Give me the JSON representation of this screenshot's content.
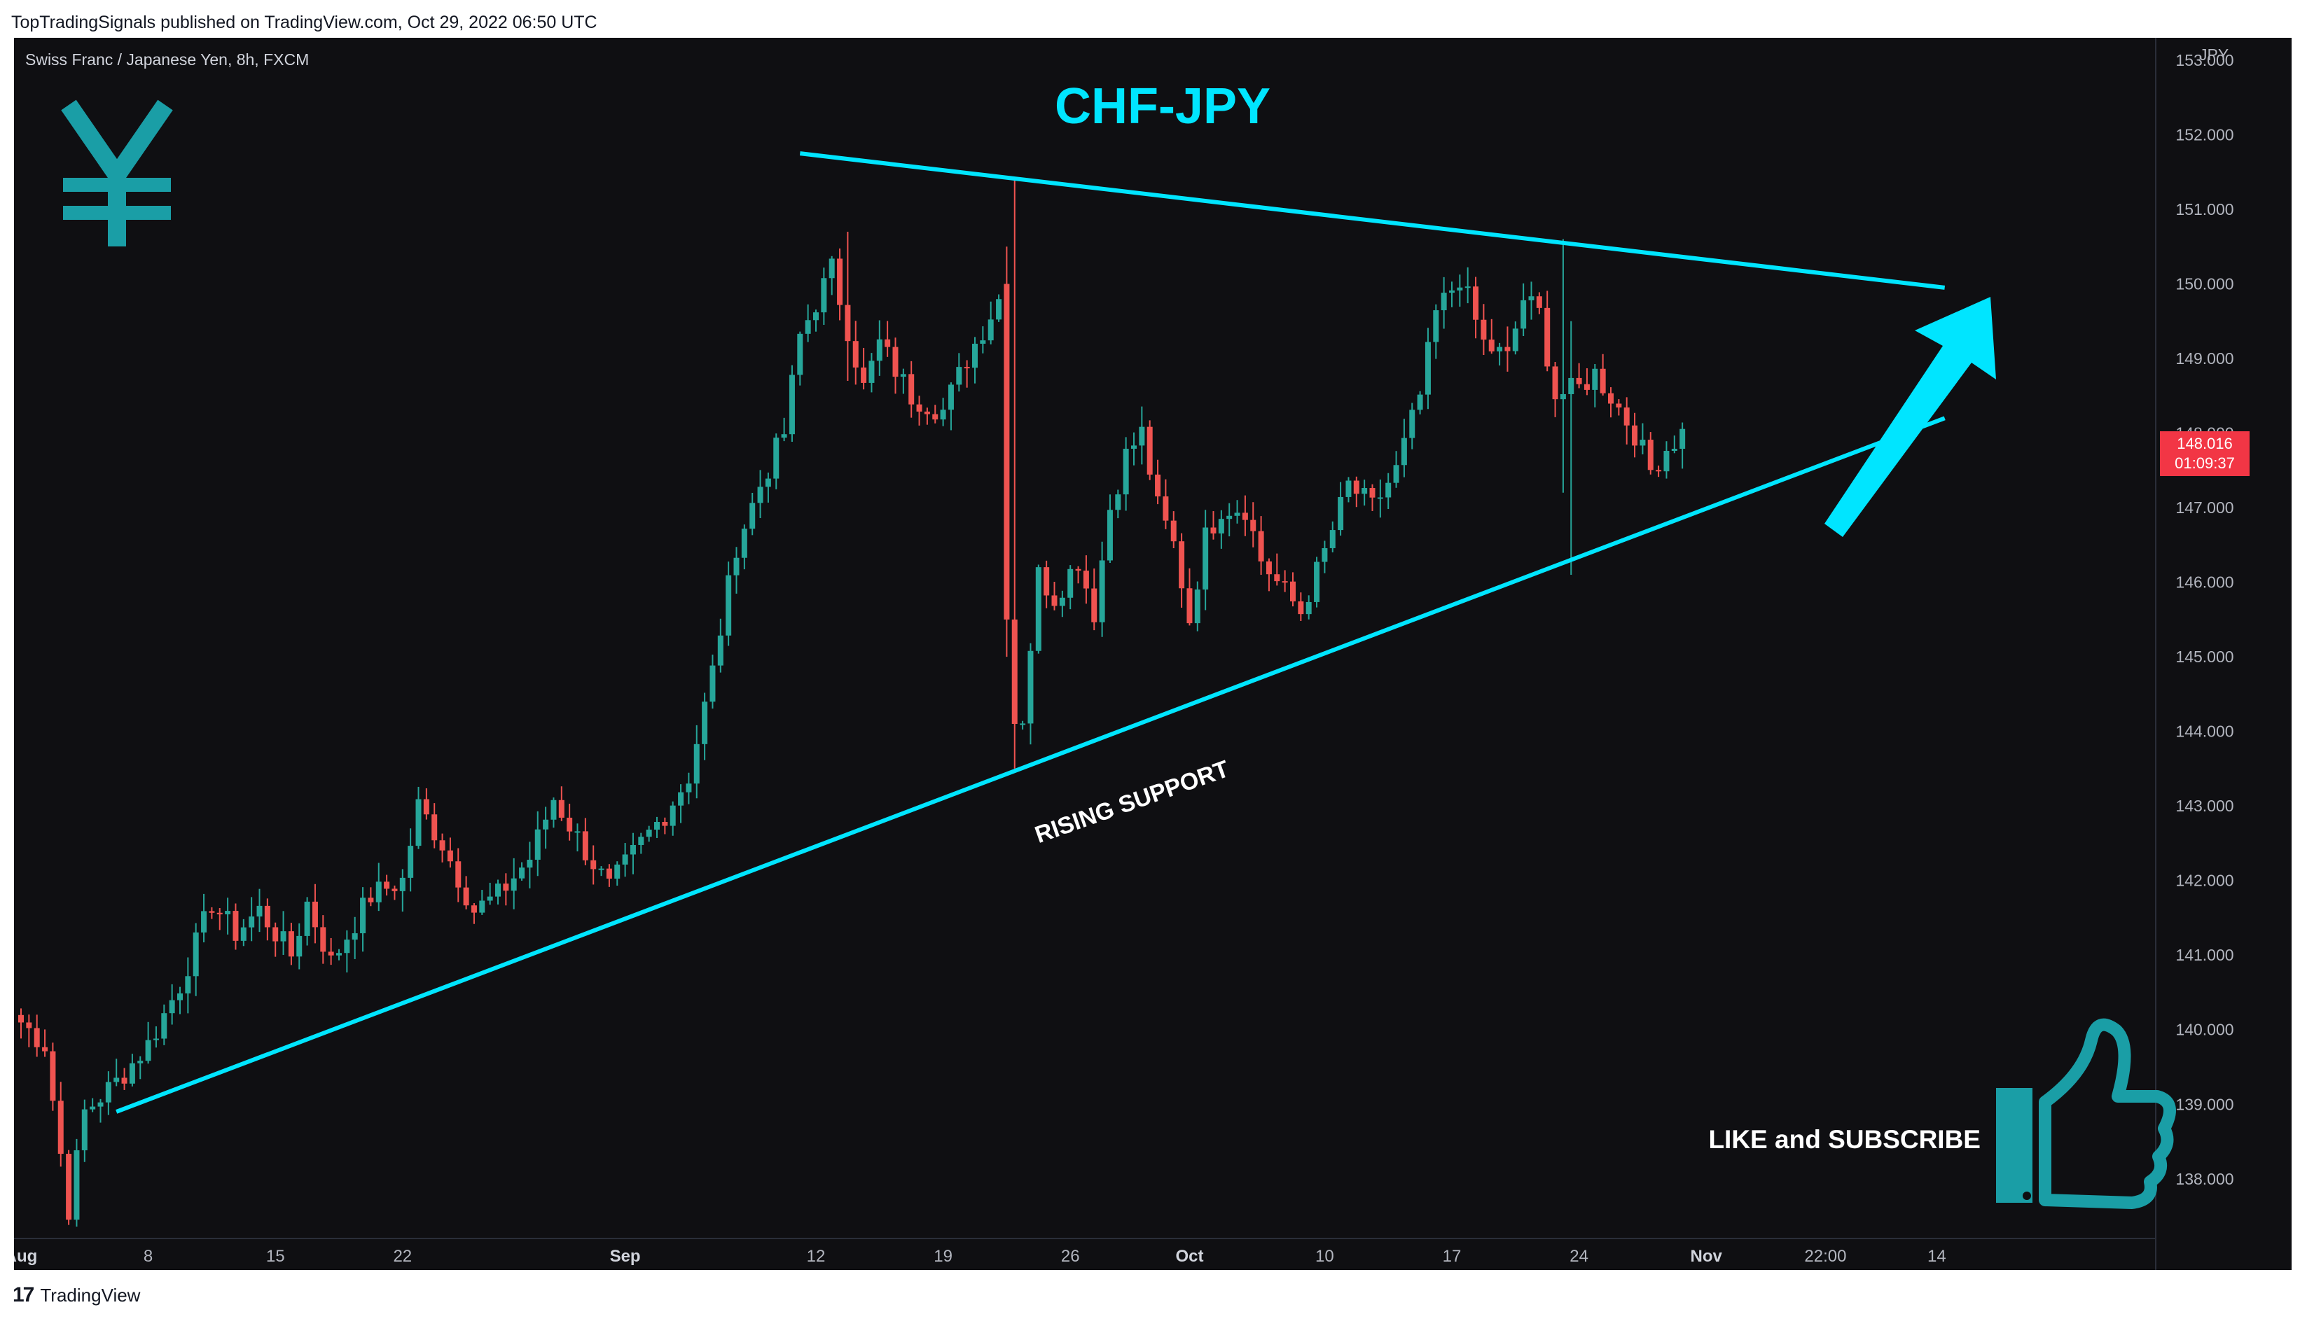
{
  "header": {
    "publish_line": "TopTradingSignals published on TradingView.com, Oct 29, 2022 06:50 UTC"
  },
  "symbol_line": "Swiss Franc / Japanese Yen, 8h, FXCM",
  "footer": {
    "brand": "TradingView",
    "logo_glyph": "17"
  },
  "colors": {
    "background": "#0f0f12",
    "up": "#26a69a",
    "down": "#ef5350",
    "cyan": "#00e5ff",
    "teal_icon": "#1a9ea6",
    "axis_text": "#b2b5be",
    "price_tag": "#f23645"
  },
  "annotations": {
    "title": "CHF-JPY",
    "support_label": "RISING SUPPORT",
    "cta": "LIKE and SUBSCRIBE",
    "yen_icon": "yen-icon",
    "thumb_icon": "thumbs-up-icon",
    "arrow_icon": "arrow-up-right-icon"
  },
  "chart_data": {
    "type": "candlestick",
    "unit": "JPY",
    "ylim": [
      137.2,
      153.3
    ],
    "y_ticks": [
      153,
      152,
      151,
      150,
      149,
      148,
      147,
      146,
      145,
      144,
      143,
      142,
      141,
      140,
      139,
      138
    ],
    "y_tick_labels": [
      "153.000",
      "152.000",
      "151.000",
      "150.000",
      "149.000",
      "148.000",
      "147.000",
      "146.000",
      "145.000",
      "144.000",
      "143.000",
      "142.000",
      "141.000",
      "140.000",
      "139.000",
      "138.000"
    ],
    "x_labels": [
      "Aug",
      "8",
      "15",
      "22",
      "Sep",
      "12",
      "19",
      "26",
      "Oct",
      "10",
      "17",
      "24",
      "Nov",
      "22:00",
      "14"
    ],
    "x_label_index": [
      0,
      16,
      32,
      48,
      76,
      100,
      116,
      132,
      147,
      164,
      180,
      196,
      212,
      227,
      241
    ],
    "bold_x_labels": [
      "Aug",
      "Sep",
      "Oct",
      "Nov"
    ],
    "last_price": "148.016",
    "countdown": "01:09:37",
    "candle_count": 210,
    "path": [
      [
        0,
        140.1
      ],
      [
        3,
        139.8
      ],
      [
        6,
        137.6
      ],
      [
        8,
        138.9
      ],
      [
        12,
        139.3
      ],
      [
        16,
        139.8
      ],
      [
        20,
        140.6
      ],
      [
        24,
        141.7
      ],
      [
        27,
        141.3
      ],
      [
        30,
        141.6
      ],
      [
        34,
        141.0
      ],
      [
        36,
        141.7
      ],
      [
        39,
        140.9
      ],
      [
        44,
        141.8
      ],
      [
        48,
        142.0
      ],
      [
        50,
        143.0
      ],
      [
        53,
        142.5
      ],
      [
        57,
        141.6
      ],
      [
        60,
        141.8
      ],
      [
        64,
        142.3
      ],
      [
        67,
        143.1
      ],
      [
        71,
        142.4
      ],
      [
        74,
        141.9
      ],
      [
        78,
        142.5
      ],
      [
        81,
        142.9
      ],
      [
        84,
        143.4
      ],
      [
        87,
        144.8
      ],
      [
        90,
        146.5
      ],
      [
        93,
        147.3
      ],
      [
        96,
        148.0
      ],
      [
        98,
        149.3
      ],
      [
        102,
        150.2
      ],
      [
        104,
        149.4
      ],
      [
        106,
        148.6
      ],
      [
        108,
        149.2
      ],
      [
        112,
        148.5
      ],
      [
        116,
        148.3
      ],
      [
        119,
        149.0
      ],
      [
        123,
        149.8
      ],
      [
        124,
        145.4
      ],
      [
        126,
        144.2
      ],
      [
        128,
        146.1
      ],
      [
        130,
        145.8
      ],
      [
        133,
        146.3
      ],
      [
        135,
        145.6
      ],
      [
        137,
        147.0
      ],
      [
        139,
        147.7
      ],
      [
        141,
        148.0
      ],
      [
        143,
        147.0
      ],
      [
        145,
        146.5
      ],
      [
        147,
        145.5
      ],
      [
        149,
        146.6
      ],
      [
        151,
        147.0
      ],
      [
        154,
        147.0
      ],
      [
        156,
        146.3
      ],
      [
        158,
        146.0
      ],
      [
        161,
        145.6
      ],
      [
        164,
        146.4
      ],
      [
        167,
        147.3
      ],
      [
        170,
        147.0
      ],
      [
        173,
        147.5
      ],
      [
        176,
        148.5
      ],
      [
        178,
        149.6
      ],
      [
        181,
        150.1
      ],
      [
        184,
        149.2
      ],
      [
        187,
        149.0
      ],
      [
        189,
        149.8
      ],
      [
        191,
        149.6
      ],
      [
        193,
        148.5
      ],
      [
        196,
        148.6
      ],
      [
        198,
        148.8
      ],
      [
        200,
        148.5
      ],
      [
        203,
        148.0
      ],
      [
        205,
        147.5
      ],
      [
        207,
        147.8
      ],
      [
        209,
        148.0
      ]
    ],
    "wicks": [
      [
        125,
        151.4,
        143.5
      ],
      [
        124,
        150.5,
        148.0
      ],
      [
        194,
        150.6,
        147.2
      ],
      [
        195,
        149.5,
        146.1
      ],
      [
        104,
        150.7,
        148.7
      ]
    ],
    "trendlines": [
      {
        "name": "resistance",
        "from": [
          98,
          151.75
        ],
        "to": [
          242,
          149.95
        ]
      },
      {
        "name": "rising support",
        "from": [
          12,
          138.9
        ],
        "to": [
          242,
          148.2
        ]
      }
    ]
  }
}
